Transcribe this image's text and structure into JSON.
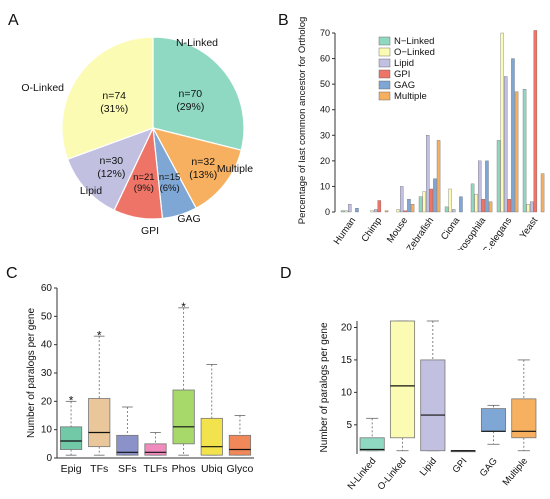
{
  "panels": {
    "a": {
      "label": "A"
    },
    "b": {
      "label": "B"
    },
    "c": {
      "label": "C"
    },
    "d": {
      "label": "D"
    }
  },
  "chart_data": [
    {
      "type": "pie",
      "panel": "A",
      "slices": [
        {
          "name": "N-Linked",
          "value": 70,
          "n_label": "n=70",
          "pct_label": "(29%)",
          "color": "#8fd9c3"
        },
        {
          "name": "Multiple",
          "value": 32,
          "n_label": "n=32",
          "pct_label": "(13%)",
          "color": "#f7b060"
        },
        {
          "name": "GAG",
          "value": 15,
          "n_label": "n=15",
          "pct_label": "(6%)",
          "color": "#7fa7d6"
        },
        {
          "name": "GPI",
          "value": 21,
          "n_label": "n=21",
          "pct_label": "(9%)",
          "color": "#ef7468"
        },
        {
          "name": "Lipid",
          "value": 30,
          "n_label": "n=30",
          "pct_label": "(12%)",
          "color": "#c2c0e0"
        },
        {
          "name": "O-Linked",
          "value": 74,
          "n_label": "n=74",
          "pct_label": "(31%)",
          "color": "#fbfbb4"
        }
      ]
    },
    {
      "type": "bar",
      "panel": "B",
      "ylabel": "Percentage of last common ancestor for Ortholog",
      "ylim": [
        0,
        70
      ],
      "yticks": [
        "0",
        "10",
        "20",
        "30",
        "40",
        "50",
        "60",
        "70"
      ],
      "categories": [
        "Human",
        "Chimp",
        "Mouse",
        "Zebrafish",
        "Ciona",
        "Drosophila",
        "C.elegans",
        "Yeast"
      ],
      "legend_position": "top-left",
      "series": [
        {
          "name": "N−Linked",
          "color": "#8fd9c3",
          "values": [
            0.5,
            0,
            0,
            6,
            2,
            11,
            28,
            48
          ]
        },
        {
          "name": "O−Linked",
          "color": "#fbfbb4",
          "values": [
            0.5,
            0.5,
            1,
            8,
            9,
            7,
            70,
            3
          ]
        },
        {
          "name": "Lipid",
          "color": "#c2c0e0",
          "values": [
            3,
            1,
            10,
            30,
            1,
            20,
            53,
            4
          ]
        },
        {
          "name": "GPI",
          "color": "#ef7468",
          "values": [
            0,
            4.5,
            0.5,
            9,
            0,
            5,
            5,
            71
          ]
        },
        {
          "name": "GAG",
          "color": "#7fa7d6",
          "values": [
            1.5,
            0,
            5,
            13,
            6,
            20,
            60,
            0
          ]
        },
        {
          "name": "Multiple",
          "color": "#f7b060",
          "values": [
            0,
            0.5,
            3,
            28,
            0,
            4,
            47,
            15
          ]
        }
      ]
    },
    {
      "type": "box",
      "panel": "C",
      "ylabel": "Number of paralogs per gene",
      "ylim": [
        0,
        60
      ],
      "yticks": [
        "0",
        "10",
        "20",
        "30",
        "40",
        "50",
        "60"
      ],
      "outlier_marker": "*",
      "boxes": [
        {
          "name": "Epig",
          "color": "#72c9a8",
          "min": 1,
          "q1": 3,
          "median": 6,
          "q3": 11,
          "max": 20,
          "outlier": 21
        },
        {
          "name": "TFs",
          "color": "#e9c79a",
          "min": 1,
          "q1": 4,
          "median": 9,
          "q3": 21,
          "max": 43,
          "outlier": 44
        },
        {
          "name": "SFs",
          "color": "#8b91c9",
          "min": 1,
          "q1": 1,
          "median": 2,
          "q3": 8,
          "max": 18,
          "outlier": null
        },
        {
          "name": "TLFs",
          "color": "#f08bbe",
          "min": 1,
          "q1": 1,
          "median": 2,
          "q3": 5,
          "max": 9,
          "outlier": null
        },
        {
          "name": "Phos",
          "color": "#a6d96a",
          "min": 1,
          "q1": 5,
          "median": 11,
          "q3": 24,
          "max": 53,
          "outlier": 54
        },
        {
          "name": "Ubiq",
          "color": "#f2e34c",
          "min": 1,
          "q1": 1,
          "median": 4,
          "q3": 14,
          "max": 33,
          "outlier": null
        },
        {
          "name": "Glyco",
          "color": "#f1885a",
          "min": 1,
          "q1": 1,
          "median": 3,
          "q3": 8,
          "max": 15,
          "outlier": null
        }
      ]
    },
    {
      "type": "box",
      "panel": "D",
      "ylabel": "Number of paralogs per gene",
      "ylim": [
        0.5,
        21
      ],
      "yticks": [
        "5",
        "10",
        "15",
        "20"
      ],
      "ytick_values": [
        5,
        10,
        15,
        20
      ],
      "boxes": [
        {
          "name": "N-Linked",
          "color": "#8fd9c3",
          "min": 1,
          "q1": 1,
          "median": 1.2,
          "q3": 3,
          "max": 6
        },
        {
          "name": "O-Linked",
          "color": "#fbfbb4",
          "min": 1,
          "q1": 3,
          "median": 11,
          "q3": 21,
          "max": 21
        },
        {
          "name": "Lipid",
          "color": "#c2c0e0",
          "min": 1,
          "q1": 1,
          "median": 6.5,
          "q3": 15,
          "max": 21
        },
        {
          "name": "GPI",
          "color": "#ef7468",
          "min": 1,
          "q1": 1,
          "median": 1,
          "q3": 1,
          "max": 1
        },
        {
          "name": "GAG",
          "color": "#7fa7d6",
          "min": 2,
          "q1": 4,
          "median": 4,
          "q3": 7.5,
          "max": 8
        },
        {
          "name": "Multiple",
          "color": "#f7b060",
          "min": 1,
          "q1": 3,
          "median": 4,
          "q3": 9,
          "max": 15
        }
      ]
    }
  ]
}
